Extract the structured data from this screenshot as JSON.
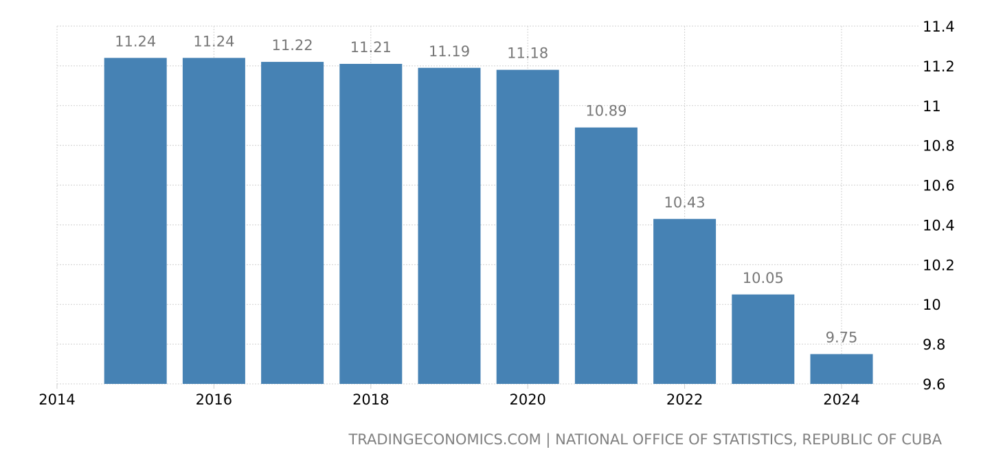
{
  "chart_data": {
    "type": "bar",
    "categories": [
      "2015",
      "2016",
      "2017",
      "2018",
      "2019",
      "2020",
      "2021",
      "2022",
      "2023",
      "2024"
    ],
    "values": [
      11.24,
      11.24,
      11.22,
      11.21,
      11.19,
      11.18,
      10.89,
      10.43,
      10.05,
      9.75
    ],
    "ylim": [
      9.6,
      11.4
    ],
    "yticks": [
      "9.6",
      "9.8",
      "10",
      "10.2",
      "10.4",
      "10.6",
      "10.8",
      "11",
      "11.2",
      "11.4"
    ],
    "xlim": [
      2014,
      2025
    ],
    "xticks": [
      "2014",
      "2016",
      "2018",
      "2020",
      "2022",
      "2024"
    ],
    "grid": true,
    "y_axis_side": "right",
    "bar_color": "#4682b4",
    "data_labels": true
  },
  "source": "TRADINGECONOMICS.COM | NATIONAL OFFICE OF STATISTICS, REPUBLIC OF CUBA"
}
